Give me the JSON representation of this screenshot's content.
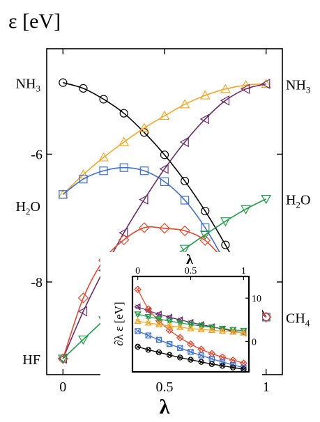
{
  "chart_data": [
    {
      "type": "line",
      "ylabel": "ε [eV]",
      "xlabel": "λ",
      "xlim": [
        -0.08,
        1.08
      ],
      "ylim": [
        -9.45,
        -4.35
      ],
      "x_ticks": [
        {
          "value": 0,
          "label": "0"
        },
        {
          "value": 0.5,
          "label": "0.5"
        },
        {
          "value": 1,
          "label": "1"
        }
      ],
      "y_ticks": [
        {
          "value": -6,
          "label": "-6"
        },
        {
          "value": -8,
          "label": "-8"
        }
      ],
      "grid": false,
      "legend": "none",
      "left_labels": [
        {
          "base": "NH",
          "sub": "3",
          "y": -4.88
        },
        {
          "base": "H",
          "sub": "2",
          "tail": "O",
          "y": -6.8
        },
        {
          "base": "HF",
          "sub": "",
          "y": -9.2
        }
      ],
      "right_labels": [
        {
          "base": "NH",
          "sub": "3",
          "y": -4.9
        },
        {
          "base": "H",
          "sub": "2",
          "tail": "O",
          "y": -6.7
        },
        {
          "base": "CH",
          "sub": "4",
          "y": -8.55
        }
      ],
      "series": [
        {
          "color": "#000000",
          "marker": "circle",
          "x": [
            0,
            0.1,
            0.2,
            0.3,
            0.4,
            0.5,
            0.6,
            0.7,
            0.8,
            0.9,
            1.0
          ],
          "y": [
            -4.88,
            -4.97,
            -5.14,
            -5.36,
            -5.66,
            -6.01,
            -6.42,
            -6.89,
            -7.42,
            -8.01,
            -8.55
          ]
        },
        {
          "color": "#f5a623",
          "marker": "triangle-up",
          "x": [
            0,
            0.1,
            0.2,
            0.3,
            0.4,
            0.5,
            0.6,
            0.7,
            0.8,
            0.9,
            1.0
          ],
          "y": [
            -6.63,
            -6.32,
            -6.05,
            -5.81,
            -5.59,
            -5.4,
            -5.22,
            -5.08,
            -4.98,
            -4.92,
            -4.9
          ]
        },
        {
          "color": "#3a6fd8",
          "marker": "square",
          "x": [
            0,
            0.1,
            0.2,
            0.3,
            0.4,
            0.5,
            0.6,
            0.7,
            0.8,
            0.9,
            1.0
          ],
          "y": [
            -6.63,
            -6.39,
            -6.26,
            -6.21,
            -6.26,
            -6.43,
            -6.72,
            -7.15,
            -7.7,
            -8.3,
            -8.55
          ]
        },
        {
          "color": "#6b2a6e",
          "marker": "triangle-left",
          "x": [
            0,
            0.1,
            0.2,
            0.3,
            0.4,
            0.5,
            0.6,
            0.7,
            0.8,
            0.9,
            1.0
          ],
          "y": [
            -9.2,
            -8.46,
            -7.82,
            -7.23,
            -6.71,
            -6.23,
            -5.81,
            -5.45,
            -5.16,
            -4.98,
            -4.9
          ]
        },
        {
          "color": "#e8462a",
          "marker": "diamond",
          "x": [
            0,
            0.1,
            0.2,
            0.3,
            0.4,
            0.5,
            0.6,
            0.7,
            0.8,
            0.9,
            1.0
          ],
          "y": [
            -9.2,
            -8.25,
            -7.66,
            -7.34,
            -7.15,
            -7.16,
            -7.2,
            -7.35,
            -7.7,
            -8.2,
            -8.55
          ]
        },
        {
          "color": "#1e9e45",
          "marker": "triangle-down",
          "x": [
            0,
            0.1,
            0.2,
            0.3,
            0.4,
            0.5,
            0.6,
            0.7,
            0.8,
            0.9,
            1.0
          ],
          "y": [
            -9.2,
            -8.9,
            -8.6,
            -8.3,
            -8.0,
            -7.72,
            -7.48,
            -7.26,
            -7.05,
            -6.86,
            -6.7
          ]
        }
      ]
    },
    {
      "type": "line",
      "inset": true,
      "xlabel": "λ",
      "ylabel": "∂λ ε [eV]",
      "xlim": [
        -0.05,
        1.05
      ],
      "ylim": [
        -7,
        15
      ],
      "x_ticks": [
        {
          "value": 0,
          "label": "0"
        },
        {
          "value": 0.5,
          "label": "0.5"
        },
        {
          "value": 1,
          "label": "1"
        }
      ],
      "y_ticks": [
        {
          "value": 0,
          "label": "0"
        },
        {
          "value": 10,
          "label": "10"
        }
      ],
      "series": [
        {
          "color": "#6b2a6e",
          "marker": "triangle-left",
          "x": [
            0,
            0.1,
            0.2,
            0.3,
            0.4,
            0.5,
            0.6,
            0.7,
            0.8,
            0.9,
            1.0
          ],
          "y": [
            8.0,
            7.1,
            6.3,
            5.6,
            5.0,
            4.4,
            3.9,
            3.4,
            2.9,
            2.4,
            2.0
          ]
        },
        {
          "color": "#e8462a",
          "marker": "diamond",
          "x": [
            0,
            0.1,
            0.2,
            0.3,
            0.4,
            0.5,
            0.6,
            0.7,
            0.8,
            0.9,
            1.0
          ],
          "y": [
            12.0,
            7.5,
            4.8,
            2.6,
            0.9,
            -0.6,
            -1.8,
            -2.8,
            -3.6,
            -4.3,
            -5.0
          ]
        },
        {
          "color": "#1e9e45",
          "marker": "triangle-down",
          "x": [
            0,
            0.1,
            0.2,
            0.3,
            0.4,
            0.5,
            0.6,
            0.7,
            0.8,
            0.9,
            1.0
          ],
          "y": [
            6.3,
            5.7,
            5.2,
            4.7,
            4.3,
            3.9,
            3.6,
            3.3,
            3.0,
            2.7,
            2.5
          ]
        },
        {
          "color": "#f5a623",
          "marker": "triangle-up",
          "x": [
            0,
            0.1,
            0.2,
            0.3,
            0.4,
            0.5,
            0.6,
            0.7,
            0.8,
            0.9,
            1.0
          ],
          "y": [
            4.7,
            4.3,
            3.9,
            3.6,
            3.3,
            3.0,
            2.8,
            2.6,
            2.4,
            2.2,
            2.0
          ]
        },
        {
          "color": "#3a6fd8",
          "marker": "square",
          "x": [
            0,
            0.1,
            0.2,
            0.3,
            0.4,
            0.5,
            0.6,
            0.7,
            0.8,
            0.9,
            1.0
          ],
          "y": [
            2.4,
            1.4,
            0.4,
            -0.6,
            -1.5,
            -2.4,
            -3.2,
            -4.0,
            -4.7,
            -5.4,
            -6.0
          ]
        },
        {
          "color": "#000000",
          "marker": "circle-x",
          "x": [
            0,
            0.1,
            0.2,
            0.3,
            0.4,
            0.5,
            0.6,
            0.7,
            0.8,
            0.9,
            1.0
          ],
          "y": [
            -1.2,
            -1.9,
            -2.5,
            -3.1,
            -3.7,
            -4.2,
            -4.7,
            -5.2,
            -5.6,
            -6.0,
            -6.4
          ]
        }
      ]
    }
  ]
}
